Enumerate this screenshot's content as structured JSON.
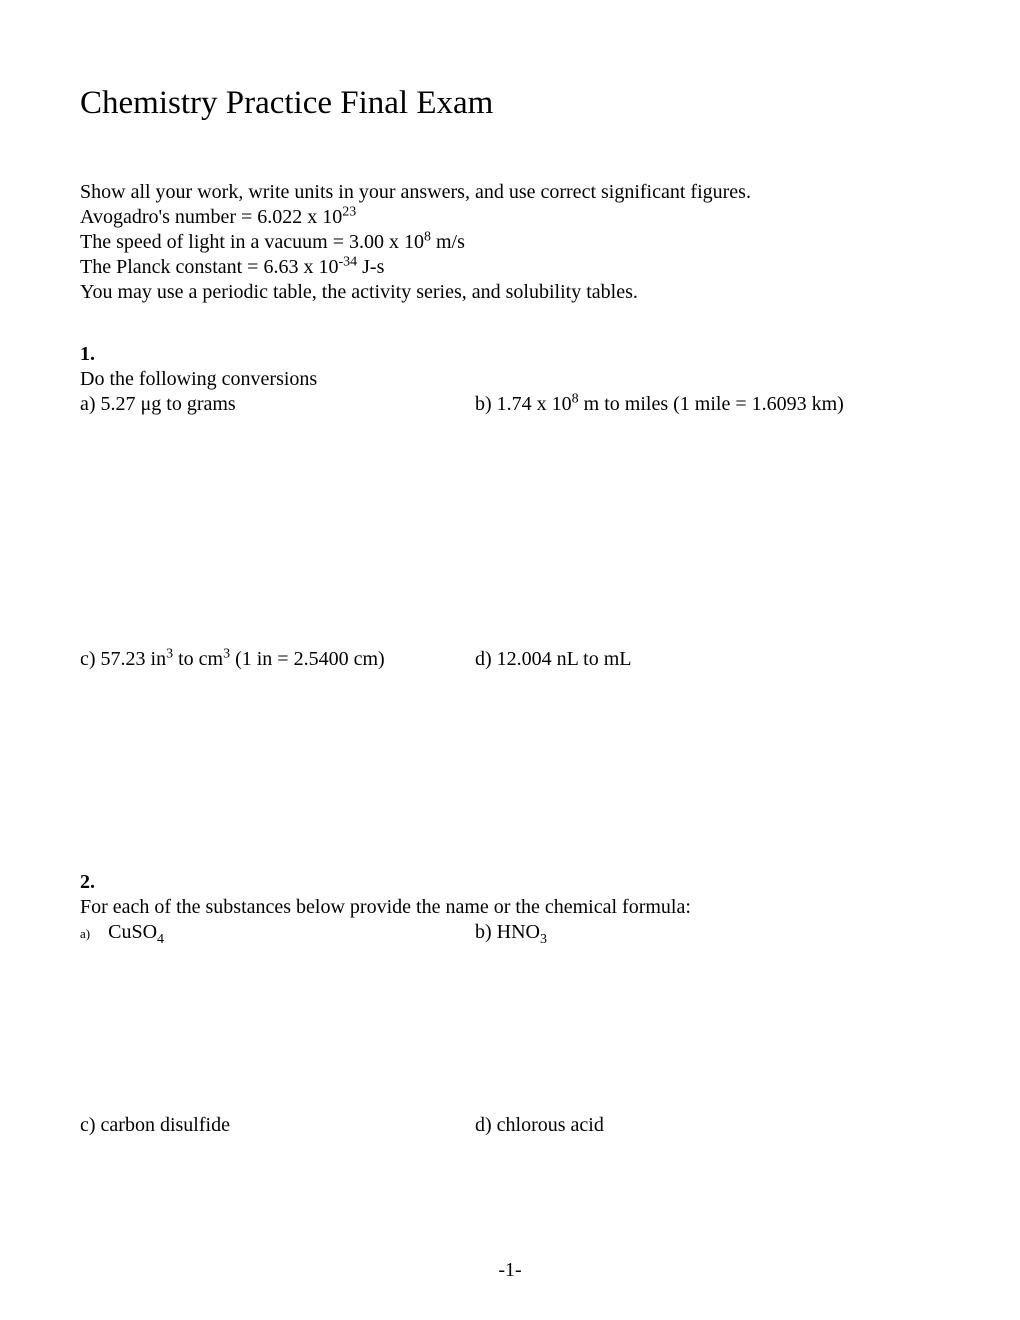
{
  "title": "Chemistry Practice Final Exam",
  "instructions": {
    "line1": "Show all your work, write units in your answers, and use correct significant figures.",
    "avogadro_pre": "Avogadro's number = 6.022 x 10",
    "avogadro_exp": "23",
    "light_pre": "The speed of light in a vacuum = 3.00 x 10",
    "light_exp": "8",
    "light_post": " m/s",
    "planck_pre": "The Planck constant = 6.63 x 10",
    "planck_exp": "-34",
    "planck_post": " J-s",
    "line5": "You may use a periodic table, the activity series, and solubility tables."
  },
  "q1": {
    "number": "1.",
    "prompt": "Do the following conversions",
    "a": "a) 5.27 μg to grams",
    "b_pre": "b) 1.74 x 10",
    "b_exp": "8",
    "b_post": " m to miles (1 mile = 1.6093 km)",
    "c_pre": "c) 57.23 in",
    "c_exp1": "3",
    "c_mid": " to cm",
    "c_exp2": "3",
    "c_post": " (1 in = 2.5400 cm)",
    "d": "d) 12.004 nL to mL"
  },
  "q2": {
    "number": "2.",
    "prompt": "For each of the substances below provide the name or the chemical formula:",
    "a_label": "a)",
    "a_pre": "CuSO",
    "a_sub": "4",
    "b_pre": "b) HNO",
    "b_sub": "3",
    "c": "c) carbon disulfide",
    "d": "d) chlorous acid"
  },
  "page_number": "-1-"
}
